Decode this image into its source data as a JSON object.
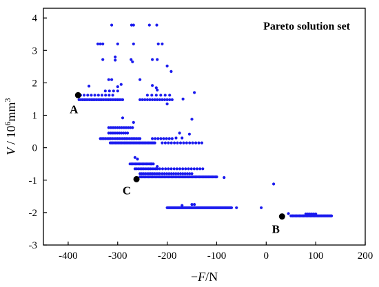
{
  "chart_data": {
    "type": "scatter",
    "title": "",
    "legend_text": "Pareto solution set",
    "legend_position": "top-right",
    "xlabel": "−F/N",
    "ylabel": "V / 10^6mm^3",
    "xlim": [
      -450,
      200
    ],
    "ylim": [
      -3,
      4.3
    ],
    "x_ticks": [
      -400,
      -300,
      -200,
      -100,
      0,
      100,
      200
    ],
    "x_tick_labels": [
      "-400",
      "-300",
      "-200",
      "-100",
      "0",
      "100",
      "200"
    ],
    "y_ticks": [
      -3,
      -2,
      -1,
      0,
      1,
      2,
      3,
      4
    ],
    "y_tick_labels": [
      "-3",
      "-2",
      "-1",
      "0",
      "1",
      "2",
      "3",
      "4"
    ],
    "grid": false,
    "series_color": "#1a1aee",
    "highlight_color": "#000000",
    "series": [
      {
        "name": "Pareto solution set",
        "clusters": [
          {
            "y": 1.48,
            "x_start": -378,
            "x_end": -290,
            "count": 26
          },
          {
            "y": 1.48,
            "x_start": -255,
            "x_end": -190,
            "count": 14
          },
          {
            "y": 1.62,
            "x_start": -375,
            "x_end": -310,
            "count": 10
          },
          {
            "y": 1.62,
            "x_start": -240,
            "x_end": -195,
            "count": 6
          },
          {
            "y": 1.75,
            "x_start": -325,
            "x_end": -300,
            "count": 4
          },
          {
            "y": 0.62,
            "x_start": -318,
            "x_end": -270,
            "count": 12
          },
          {
            "y": 0.45,
            "x_start": -318,
            "x_end": -280,
            "count": 10
          },
          {
            "y": 0.28,
            "x_start": -335,
            "x_end": -255,
            "count": 24
          },
          {
            "y": 0.28,
            "x_start": -230,
            "x_end": -190,
            "count": 8
          },
          {
            "y": 0.15,
            "x_start": -315,
            "x_end": -225,
            "count": 36
          },
          {
            "y": 0.15,
            "x_start": -210,
            "x_end": -130,
            "count": 14
          },
          {
            "y": -0.5,
            "x_start": -275,
            "x_end": -228,
            "count": 18
          },
          {
            "y": -0.65,
            "x_start": -265,
            "x_end": -220,
            "count": 14
          },
          {
            "y": -0.65,
            "x_start": -215,
            "x_end": -128,
            "count": 16
          },
          {
            "y": -0.8,
            "x_start": -255,
            "x_end": -215,
            "count": 12
          },
          {
            "y": -0.8,
            "x_start": -210,
            "x_end": -150,
            "count": 14
          },
          {
            "y": -0.9,
            "x_start": -255,
            "x_end": -100,
            "count": 55
          },
          {
            "y": -1.85,
            "x_start": -200,
            "x_end": -70,
            "count": 80
          },
          {
            "y": -2.1,
            "x_start": 50,
            "x_end": 132,
            "count": 30
          },
          {
            "y": -2.04,
            "x_start": 80,
            "x_end": 100,
            "count": 6
          }
        ],
        "points": [
          [
            -312,
            3.78
          ],
          [
            -272,
            3.78
          ],
          [
            -268,
            3.78
          ],
          [
            -221,
            3.78
          ],
          [
            -236,
            3.78
          ],
          [
            -340,
            3.2
          ],
          [
            -335,
            3.2
          ],
          [
            -330,
            3.2
          ],
          [
            -300,
            3.2
          ],
          [
            -268,
            3.2
          ],
          [
            -218,
            3.2
          ],
          [
            -210,
            3.2
          ],
          [
            -330,
            2.72
          ],
          [
            -305,
            2.8
          ],
          [
            -305,
            2.7
          ],
          [
            -273,
            2.72
          ],
          [
            -270,
            2.65
          ],
          [
            -230,
            2.72
          ],
          [
            -220,
            2.72
          ],
          [
            -200,
            2.52
          ],
          [
            -192,
            2.35
          ],
          [
            -318,
            2.1
          ],
          [
            -312,
            2.1
          ],
          [
            -255,
            2.1
          ],
          [
            -300,
            1.88
          ],
          [
            -293,
            1.95
          ],
          [
            -358,
            1.9
          ],
          [
            -230,
            1.92
          ],
          [
            -222,
            1.85
          ],
          [
            -220,
            1.78
          ],
          [
            -200,
            1.35
          ],
          [
            -168,
            1.5
          ],
          [
            -145,
            1.7
          ],
          [
            -290,
            0.92
          ],
          [
            -268,
            0.78
          ],
          [
            -175,
            0.45
          ],
          [
            -155,
            0.42
          ],
          [
            -150,
            0.88
          ],
          [
            -182,
            0.3
          ],
          [
            -170,
            0.3
          ],
          [
            -265,
            -0.3
          ],
          [
            -260,
            -0.35
          ],
          [
            -232,
            -0.5
          ],
          [
            -220,
            -0.58
          ],
          [
            -85,
            -0.92
          ],
          [
            -170,
            -1.78
          ],
          [
            -150,
            -1.75
          ],
          [
            -145,
            -1.75
          ],
          [
            -60,
            -1.85
          ],
          [
            -10,
            -1.85
          ],
          [
            15,
            -1.12
          ],
          [
            45,
            -2.03
          ]
        ]
      }
    ],
    "highlighted_points": [
      {
        "label": "A",
        "x": -380,
        "y": 1.62
      },
      {
        "label": "B",
        "x": 32,
        "y": -2.12
      },
      {
        "label": "C",
        "x": -262,
        "y": -0.97
      }
    ]
  }
}
